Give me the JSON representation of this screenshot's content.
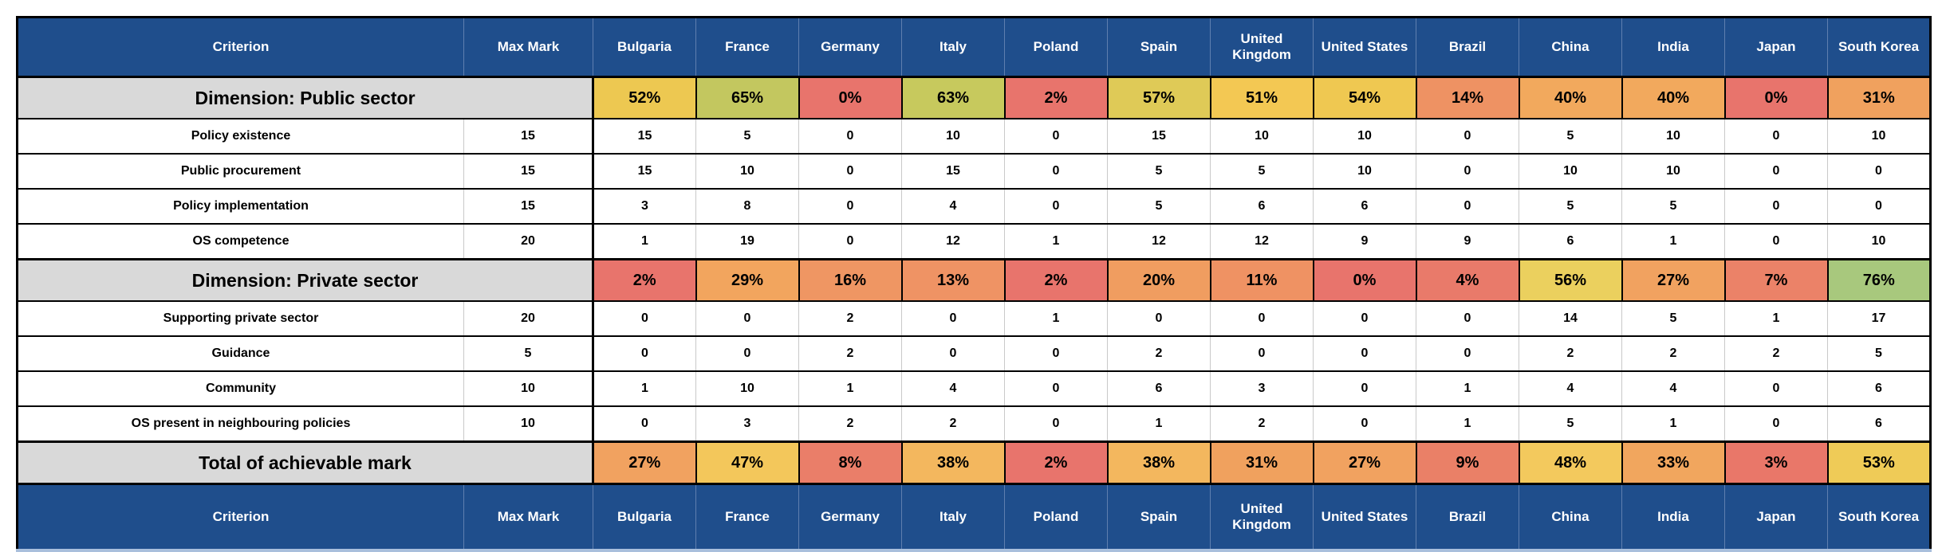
{
  "chart_data": {
    "type": "table",
    "header": {
      "criterion": "Criterion",
      "max_mark": "Max Mark"
    },
    "countries": [
      "Bulgaria",
      "France",
      "Germany",
      "Italy",
      "Poland",
      "Spain",
      "United Kingdom",
      "United States",
      "Brazil",
      "China",
      "India",
      "Japan",
      "South Korea"
    ],
    "sections": [
      {
        "label": "Dimension: Public sector",
        "percentages": [
          "52%",
          "65%",
          "0%",
          "63%",
          "2%",
          "57%",
          "51%",
          "54%",
          "14%",
          "40%",
          "40%",
          "0%",
          "31%"
        ],
        "percent_colors": [
          "#EDC851",
          "#C3C75F",
          "#E8746C",
          "#C7C95D",
          "#E8746C",
          "#DFCA57",
          "#F3C853",
          "#EFC851",
          "#EE9263",
          "#F2A95D",
          "#F2A95D",
          "#E8746C",
          "#F0A15E"
        ],
        "rows": [
          {
            "label": "Policy existence",
            "max_mark": "15",
            "values": [
              "15",
              "5",
              "0",
              "10",
              "0",
              "15",
              "10",
              "10",
              "0",
              "5",
              "10",
              "0",
              "10"
            ]
          },
          {
            "label": "Public procurement",
            "max_mark": "15",
            "values": [
              "15",
              "10",
              "0",
              "15",
              "0",
              "5",
              "5",
              "10",
              "0",
              "10",
              "10",
              "0",
              "0"
            ]
          },
          {
            "label": "Policy implementation",
            "max_mark": "15",
            "values": [
              "3",
              "8",
              "0",
              "4",
              "0",
              "5",
              "6",
              "6",
              "0",
              "5",
              "5",
              "0",
              "0"
            ]
          },
          {
            "label": "OS competence",
            "max_mark": "20",
            "values": [
              "1",
              "19",
              "0",
              "12",
              "1",
              "12",
              "12",
              "9",
              "9",
              "6",
              "1",
              "0",
              "10"
            ]
          }
        ]
      },
      {
        "label": "Dimension: Private sector",
        "percentages": [
          "2%",
          "29%",
          "16%",
          "13%",
          "2%",
          "20%",
          "11%",
          "0%",
          "4%",
          "56%",
          "27%",
          "7%",
          "76%"
        ],
        "percent_colors": [
          "#E8746C",
          "#F2A55E",
          "#EF9663",
          "#EF9364",
          "#E8746C",
          "#F09D60",
          "#EF9263",
          "#E8746C",
          "#E97A6A",
          "#EBD05E",
          "#F1A260",
          "#EB8268",
          "#A8C87D"
        ],
        "rows": [
          {
            "label": "Supporting private sector",
            "max_mark": "20",
            "values": [
              "0",
              "0",
              "2",
              "0",
              "1",
              "0",
              "0",
              "0",
              "0",
              "14",
              "5",
              "1",
              "17"
            ]
          },
          {
            "label": "Guidance",
            "max_mark": "5",
            "values": [
              "0",
              "0",
              "2",
              "0",
              "0",
              "2",
              "0",
              "0",
              "0",
              "2",
              "2",
              "2",
              "5"
            ]
          },
          {
            "label": "Community",
            "max_mark": "10",
            "values": [
              "1",
              "10",
              "1",
              "4",
              "0",
              "6",
              "3",
              "0",
              "1",
              "4",
              "4",
              "0",
              "6"
            ]
          },
          {
            "label": "OS present in neighbouring policies",
            "max_mark": "10",
            "values": [
              "0",
              "3",
              "2",
              "2",
              "0",
              "1",
              "2",
              "0",
              "1",
              "5",
              "1",
              "0",
              "6"
            ]
          }
        ]
      }
    ],
    "total": {
      "label": "Total of achievable mark",
      "percentages": [
        "27%",
        "47%",
        "8%",
        "38%",
        "2%",
        "38%",
        "31%",
        "27%",
        "9%",
        "48%",
        "33%",
        "3%",
        "53%"
      ],
      "percent_colors": [
        "#F1A260",
        "#F3C75B",
        "#EA7E69",
        "#F3B75E",
        "#E8746C",
        "#F3B75E",
        "#F0A15E",
        "#F1A260",
        "#EA8067",
        "#F3C95D",
        "#F1A65E",
        "#E97769",
        "#EFCB57"
      ]
    },
    "colors": {
      "header_bg": "#1F4E8C",
      "header_text": "#FFFFFF",
      "dimension_bg": "#D9D9D9",
      "footer_underline": "#A9BFDC"
    }
  }
}
